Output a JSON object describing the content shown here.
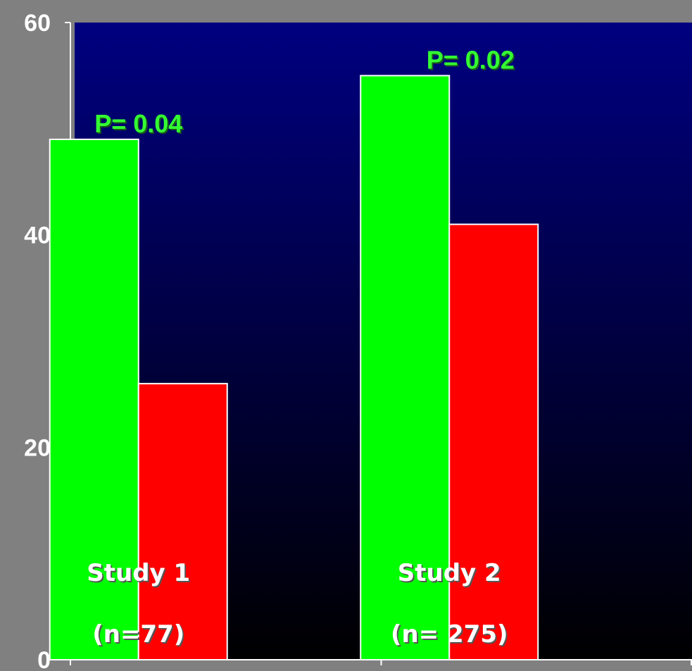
{
  "chart_data": {
    "type": "bar",
    "categories": [
      "Study 1",
      "Study 2"
    ],
    "category_labels": [
      {
        "line1": "Study 1",
        "line2": "(n=77)"
      },
      {
        "line1": "Study 2",
        "line2": "(n= 275)"
      }
    ],
    "series": [
      {
        "values": [
          49,
          55
        ],
        "color": "#00ff00"
      },
      {
        "values": [
          26,
          41
        ],
        "color": "#ff0000"
      }
    ],
    "annotations": [
      "P= 0.04",
      "P= 0.02"
    ],
    "yticks": [
      "0",
      "20",
      "40",
      "60"
    ],
    "ylim": [
      0,
      60
    ],
    "title": "",
    "xlabel": "",
    "ylabel": "",
    "grid": false,
    "colors": {
      "plot_top": "#000080",
      "plot_bottom": "#000000",
      "outer": "#808080",
      "axis": "#ffffff",
      "pvalue": "#33ff33"
    }
  }
}
